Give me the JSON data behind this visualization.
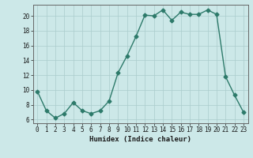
{
  "x": [
    0,
    1,
    2,
    3,
    4,
    5,
    6,
    7,
    8,
    9,
    10,
    11,
    12,
    13,
    14,
    15,
    16,
    17,
    18,
    19,
    20,
    21,
    22,
    23
  ],
  "y": [
    9.8,
    7.2,
    6.2,
    6.8,
    8.3,
    7.2,
    6.8,
    7.2,
    8.5,
    12.3,
    14.6,
    17.2,
    20.1,
    20.0,
    20.8,
    19.4,
    20.5,
    20.2,
    20.2,
    20.8,
    20.2,
    11.8,
    9.3,
    7.0
  ],
  "xlabel": "Humidex (Indice chaleur)",
  "xlim": [
    -0.5,
    23.5
  ],
  "ylim": [
    5.5,
    21.5
  ],
  "yticks": [
    6,
    8,
    10,
    12,
    14,
    16,
    18,
    20
  ],
  "xticks": [
    0,
    1,
    2,
    3,
    4,
    5,
    6,
    7,
    8,
    9,
    10,
    11,
    12,
    13,
    14,
    15,
    16,
    17,
    18,
    19,
    20,
    21,
    22,
    23
  ],
  "line_color": "#2d7a6a",
  "marker": "D",
  "marker_size": 2.5,
  "bg_color": "#cce8e8",
  "grid_color": "#aacccc",
  "axis_color": "#666666",
  "font_color": "#1a1a1a",
  "xlabel_fontsize": 6.5,
  "tick_fontsize": 5.5,
  "line_width": 1.0
}
